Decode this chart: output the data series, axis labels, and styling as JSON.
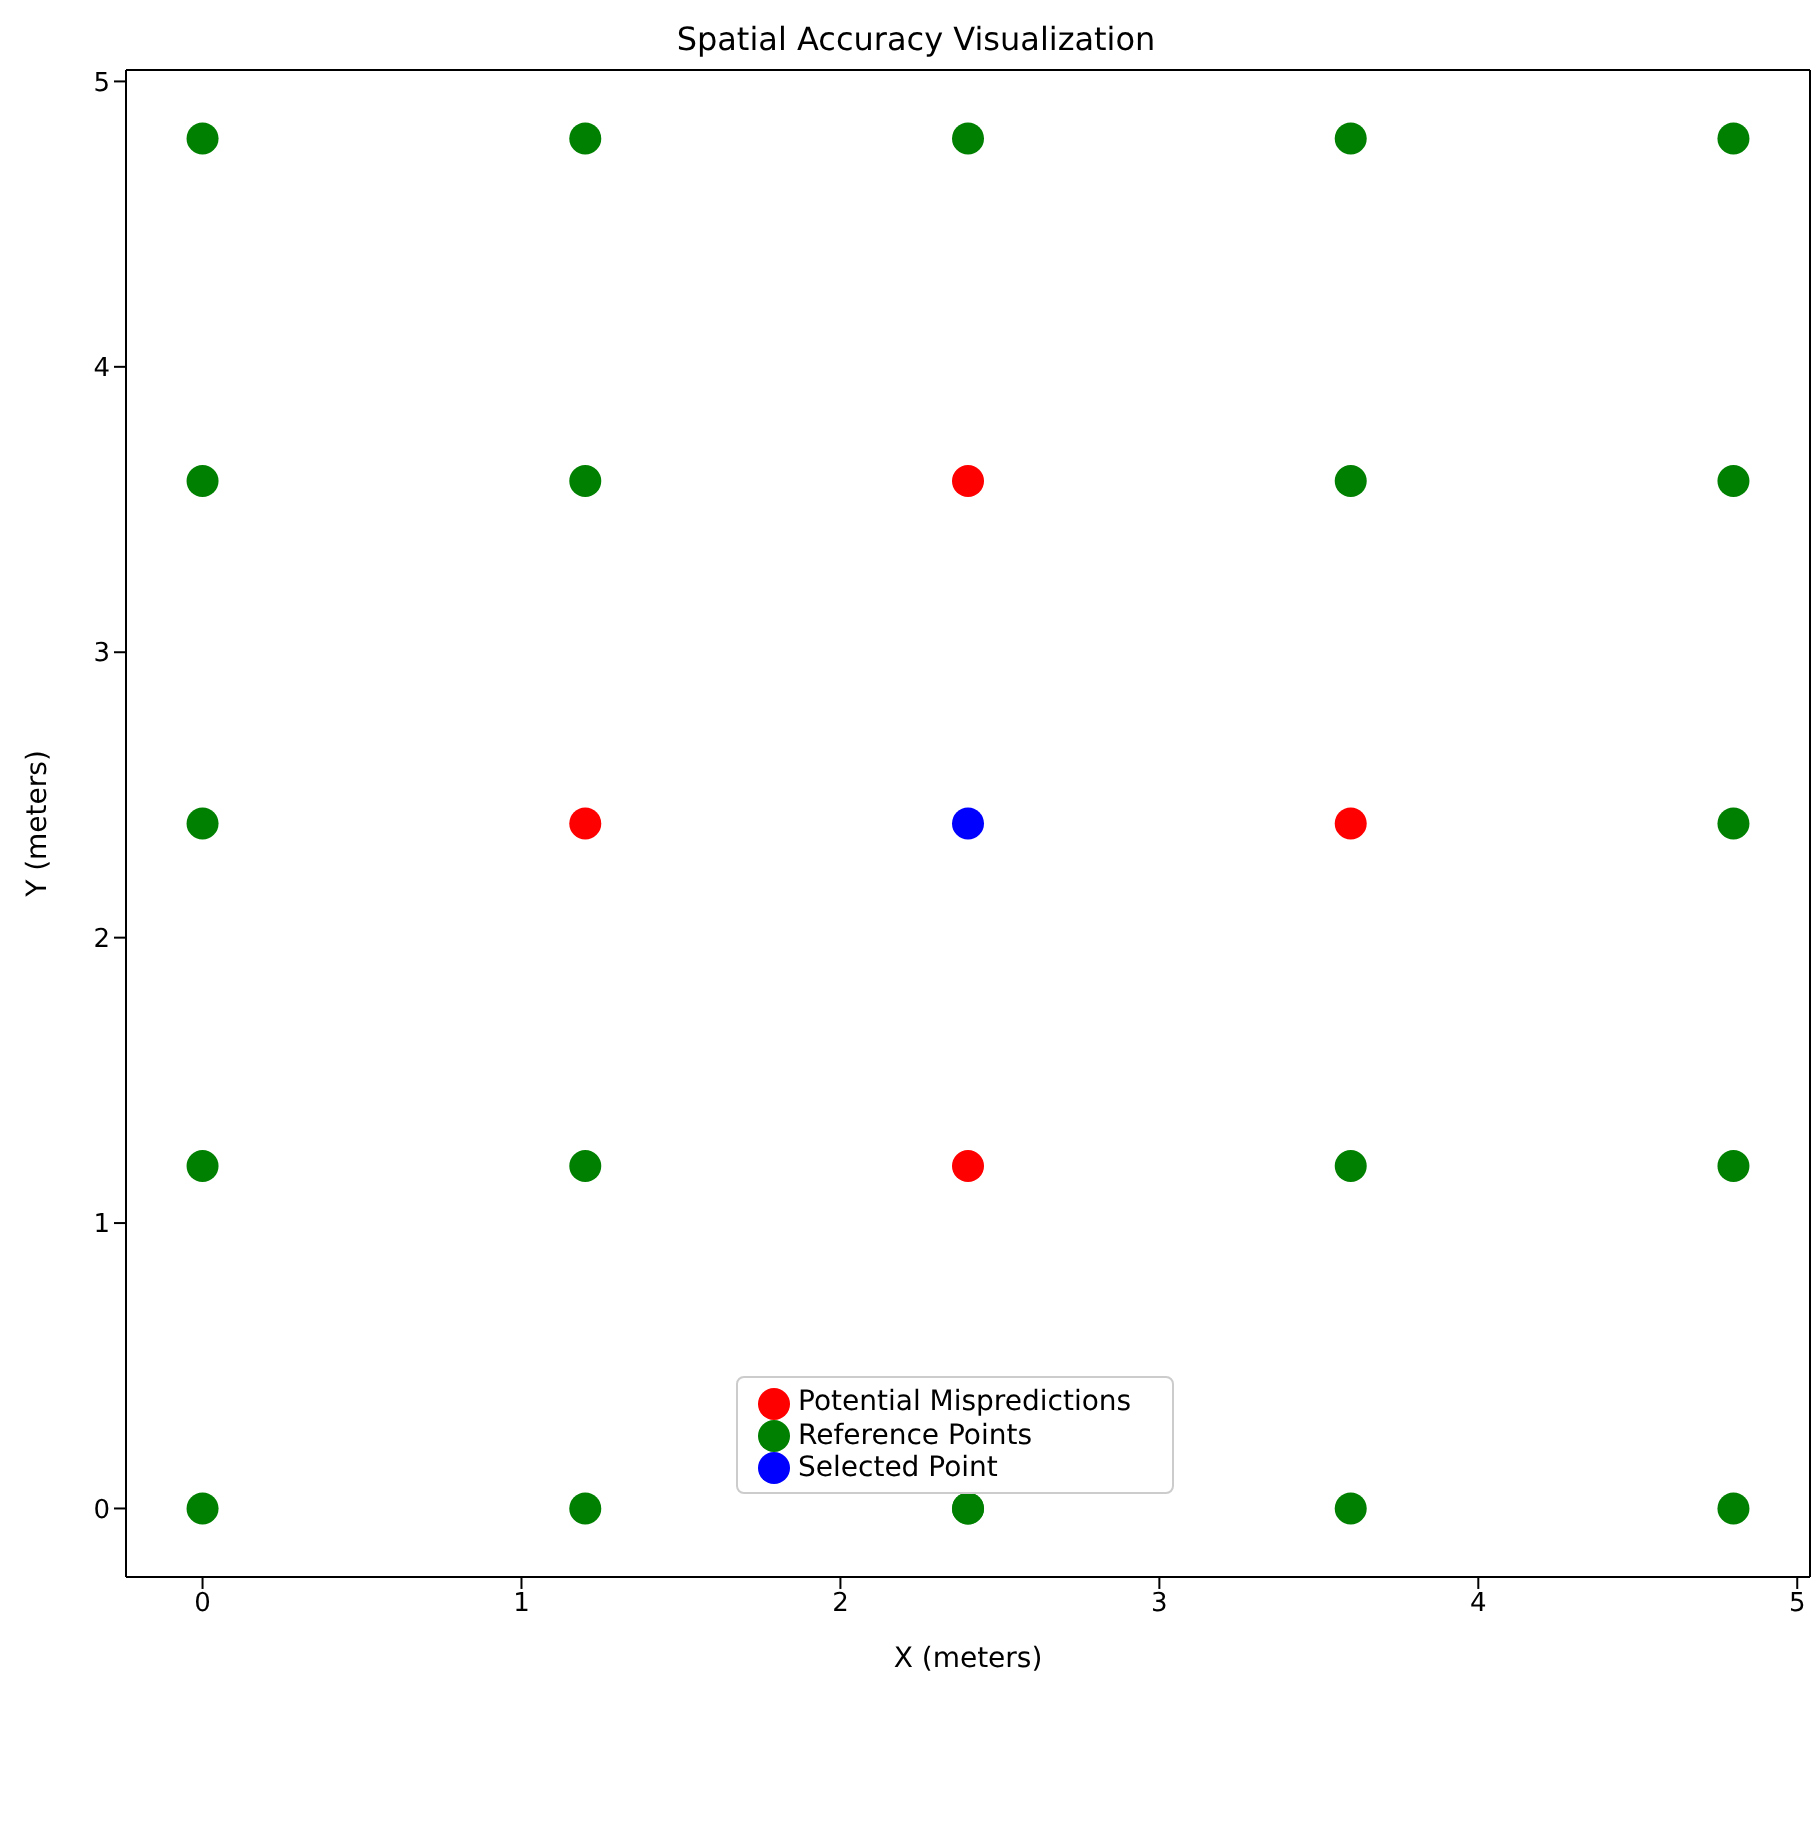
{
  "chart_data": {
    "type": "scatter",
    "title": "Spatial Accuracy Visualization",
    "xlabel": "X (meters)",
    "ylabel": "Y (meters)",
    "xlim": [
      -0.24,
      5.04
    ],
    "ylim": [
      -0.24,
      5.04
    ],
    "xticks": [
      0,
      1,
      2,
      3,
      4,
      5
    ],
    "yticks": [
      0,
      1,
      2,
      3,
      4,
      5
    ],
    "grid": false,
    "legend": "bottom",
    "marker": "circle",
    "series": [
      {
        "name": "Reference Points",
        "color": "#008000",
        "x": [
          0,
          0,
          0,
          0,
          0,
          1.2,
          1.2,
          1.2,
          2.4,
          2.4,
          3.6,
          3.6,
          3.6,
          3.6,
          4.8,
          4.8,
          4.8,
          4.8,
          4.8,
          1.2,
          2.4
        ],
        "values": [
          0,
          1.2,
          2.4,
          3.6,
          4.8,
          0,
          1.2,
          3.6,
          4.8,
          0,
          0,
          1.2,
          3.6,
          4.8,
          0,
          1.2,
          2.4,
          3.6,
          4.8,
          4.8,
          0
        ]
      },
      {
        "name": "Selected Point",
        "color": "#0000ff",
        "x": [
          2.4
        ],
        "values": [
          2.4
        ]
      },
      {
        "name": "Potential Mispredictions",
        "color": "#ff0000",
        "x": [
          1.2,
          2.4,
          2.4,
          3.6
        ],
        "values": [
          2.4,
          3.6,
          1.2,
          2.4
        ]
      }
    ]
  }
}
